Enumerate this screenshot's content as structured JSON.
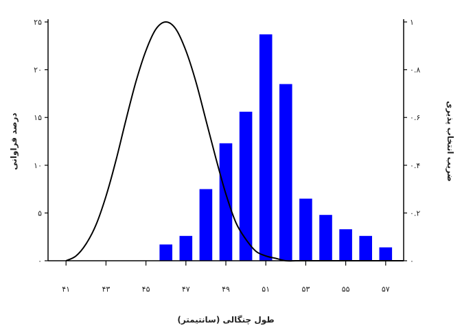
{
  "chart_data": {
    "type": "bar",
    "title": "",
    "xlabel": "طول چنگالی (سانتیمتر)",
    "ylabel_left": "درصد فراوانی",
    "ylabel_right": "ضریب انتخاب پذیری",
    "x_ticks": [
      41,
      43,
      45,
      47,
      49,
      51,
      53,
      55,
      57
    ],
    "x_tick_labels": [
      "۴۱",
      "۴۳",
      "۴۵",
      "۴۷",
      "۴۹",
      "۵۱",
      "۵۳",
      "۵۵",
      "۵۷"
    ],
    "xlim": [
      41,
      57
    ],
    "ylim_left": [
      0,
      25
    ],
    "y_left_ticks": [
      0,
      5,
      10,
      15,
      20,
      25
    ],
    "y_left_tick_labels": [
      "۰",
      "۵",
      "۱۰",
      "۱۵",
      "۲۰",
      "۲۵"
    ],
    "ylim_right": [
      0,
      1
    ],
    "y_right_ticks": [
      0,
      0.2,
      0.4,
      0.6,
      0.8,
      1
    ],
    "y_right_tick_labels": [
      "۰",
      "۰.۲",
      "۰.۴",
      "۰.۶",
      "۰.۸",
      "۱"
    ],
    "grid": false,
    "bar_color": "#0000ff",
    "curve_color": "#000000",
    "series": [
      {
        "type": "bar",
        "axis": "left",
        "x": [
          46,
          47,
          48,
          49,
          50,
          51,
          52,
          53,
          54,
          55,
          56,
          57
        ],
        "values": [
          1.7,
          2.6,
          7.5,
          12.3,
          15.6,
          23.7,
          18.5,
          6.5,
          4.8,
          3.3,
          2.6,
          1.4
        ]
      },
      {
        "type": "line",
        "axis": "right",
        "x": [
          41,
          41.5,
          42,
          42.5,
          43,
          43.5,
          44,
          44.5,
          45,
          45.5,
          46,
          46.5,
          47,
          47.5,
          48,
          48.5,
          49,
          49.5,
          50,
          50.5,
          51,
          51.5,
          52,
          52.5,
          53
        ],
        "values": [
          0.0,
          0.02,
          0.07,
          0.15,
          0.27,
          0.42,
          0.59,
          0.75,
          0.88,
          0.97,
          1.0,
          0.97,
          0.88,
          0.75,
          0.59,
          0.43,
          0.28,
          0.16,
          0.09,
          0.04,
          0.02,
          0.01,
          0.0,
          0.0,
          0.0
        ]
      }
    ]
  }
}
